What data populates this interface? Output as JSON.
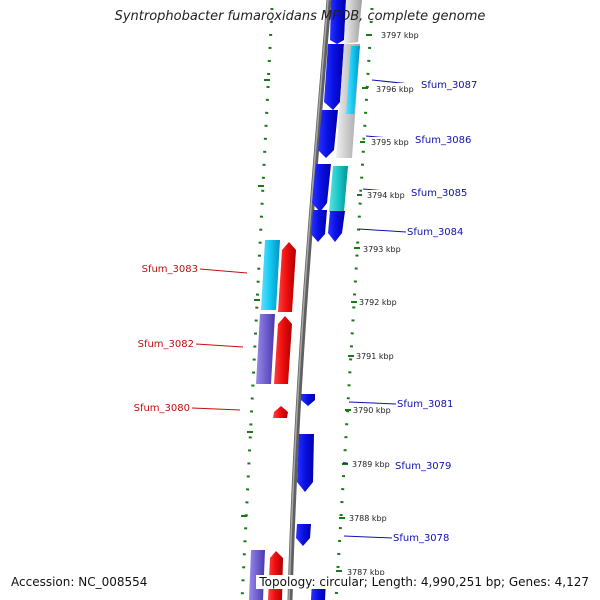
{
  "title": "Syntrophobacter fumaroxidans MPOB, complete genome",
  "footer": {
    "accession": "Accession: NC_008554",
    "summary": "Topology: circular; Length: 4,990,251 bp; Genes: 4,127"
  },
  "ticks": [
    "3797 kbp",
    "3796 kbp",
    "3795 kbp",
    "3794 kbp",
    "3793 kbp",
    "3792 kbp",
    "3791 kbp",
    "3790 kbp",
    "3789 kbp",
    "3788 kbp",
    "3787 kbp"
  ],
  "gene_labels": {
    "right": [
      "Sfum_3087",
      "Sfum_3086",
      "Sfum_3085",
      "Sfum_3084",
      "Sfum_3081",
      "Sfum_3079",
      "Sfum_3078"
    ],
    "left": [
      "Sfum_3083",
      "Sfum_3082",
      "Sfum_3080"
    ]
  },
  "colors": {
    "forward": "#0a12e6",
    "reverse": "#f01010",
    "cyan": "#12c8f0",
    "teal": "#18c8c8",
    "purple": "#7060d0",
    "backbone": "#808080",
    "dots": "#1a7a1a",
    "right_label": "#1010b0",
    "left_label": "#c01010"
  }
}
